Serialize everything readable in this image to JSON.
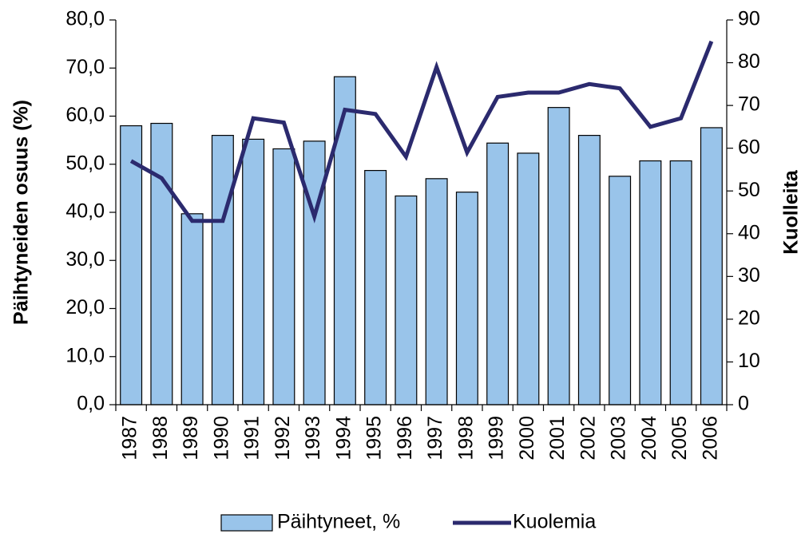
{
  "chart_data": {
    "type": "bar_line",
    "categories": [
      "1987",
      "1988",
      "1989",
      "1990",
      "1991",
      "1992",
      "1993",
      "1994",
      "1995",
      "1996",
      "1997",
      "1998",
      "1999",
      "2000",
      "2001",
      "2002",
      "2003",
      "2004",
      "2005",
      "2006"
    ],
    "series": [
      {
        "name": "Päihtyneet, %",
        "type": "bar",
        "color": "#99c4ea",
        "values": [
          58.0,
          58.5,
          39.7,
          56.0,
          55.2,
          53.2,
          54.8,
          68.2,
          48.7,
          43.4,
          47.0,
          44.2,
          54.4,
          52.3,
          61.8,
          56.0,
          47.5,
          50.7,
          50.7,
          57.6
        ]
      },
      {
        "name": "Kuolemia",
        "type": "line",
        "axis": "y2",
        "color": "#2b2a6e",
        "values": [
          57,
          53,
          43,
          43,
          67,
          66,
          44,
          69,
          68,
          58,
          79,
          59,
          72,
          73,
          73,
          75,
          74,
          65,
          67,
          85
        ]
      }
    ],
    "ylabel": "Päihtyneiden osuus (%)",
    "y2label": "Kuolleita",
    "ylim": [
      0,
      80
    ],
    "yticks": [
      {
        "value": 0,
        "label": "0,0"
      },
      {
        "value": 10,
        "label": "10,0"
      },
      {
        "value": 20,
        "label": "20,0"
      },
      {
        "value": 30,
        "label": "30,0"
      },
      {
        "value": 40,
        "label": "40,0"
      },
      {
        "value": 50,
        "label": "50,0"
      },
      {
        "value": 60,
        "label": "60,0"
      },
      {
        "value": 70,
        "label": "70,0"
      },
      {
        "value": 80,
        "label": "80,0"
      }
    ],
    "y2lim": [
      0,
      90
    ],
    "y2ticks": [
      0,
      10,
      20,
      30,
      40,
      50,
      60,
      70,
      80,
      90
    ],
    "grid": false,
    "legend": "bottom"
  }
}
